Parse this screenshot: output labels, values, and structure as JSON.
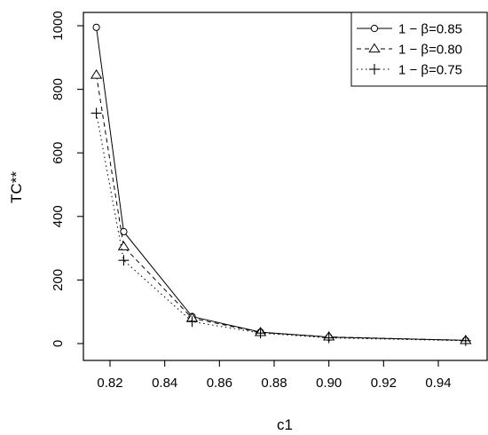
{
  "chart_data": {
    "type": "line",
    "title": "",
    "xlabel": "c1",
    "ylabel": "TC**",
    "xlim": [
      0.81,
      0.955
    ],
    "ylim": [
      0,
      1000
    ],
    "x_ticks": [
      0.82,
      0.84,
      0.86,
      0.88,
      0.9,
      0.92,
      0.94
    ],
    "x_tick_labels": [
      "0.82",
      "0.84",
      "0.86",
      "0.88",
      "0.90",
      "0.92",
      "0.94"
    ],
    "y_ticks": [
      0,
      200,
      400,
      600,
      800,
      1000
    ],
    "y_tick_labels": [
      "0",
      "200",
      "400",
      "600",
      "800",
      "1000"
    ],
    "grid": false,
    "legend_position": "top-right",
    "x": [
      0.815,
      0.825,
      0.85,
      0.875,
      0.9,
      0.95
    ],
    "series": [
      {
        "name": "1 − β=0.85",
        "marker": "circle",
        "line_style": "solid",
        "values": [
          995,
          352,
          85,
          36,
          20,
          10
        ]
      },
      {
        "name": "1 − β=0.80",
        "marker": "triangle",
        "line_style": "dashed",
        "values": [
          845,
          305,
          80,
          35,
          21,
          10
        ]
      },
      {
        "name": "1 − β=0.75",
        "marker": "plus",
        "line_style": "dotted",
        "values": [
          725,
          262,
          69,
          33,
          18,
          9
        ]
      }
    ]
  }
}
